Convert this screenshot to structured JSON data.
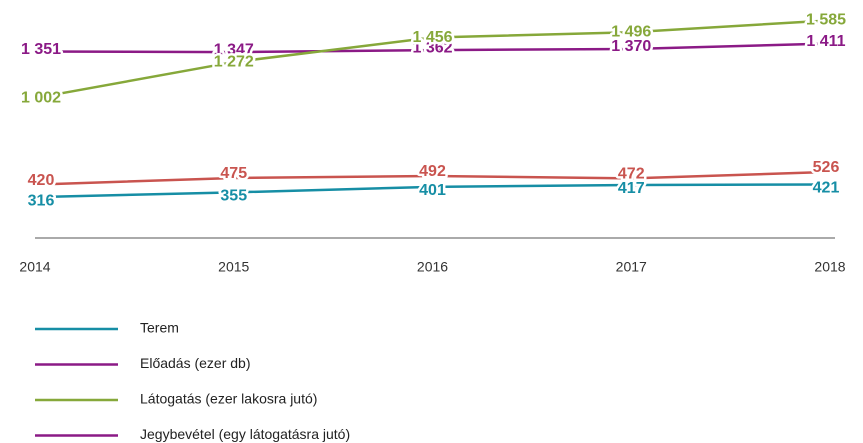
{
  "chart_data": {
    "type": "line",
    "categories": [
      "2014",
      "2015",
      "2016",
      "2017",
      "2018"
    ],
    "ylim": [
      800,
      1700
    ],
    "y2lim": [
      200,
      600
    ],
    "series": [
      {
        "name": "Terem",
        "color": "#168ea5",
        "legend_color": "#168ea5",
        "axis": "y2",
        "values": [
          316,
          355,
          401,
          417,
          421
        ]
      },
      {
        "name": "Előadás (ezer db)",
        "color": "#8b1a86",
        "legend_color": "#8b1a86",
        "values": [
          1351,
          1347,
          1362,
          1370,
          1411
        ],
        "value_labels": [
          "1 351",
          "1 347",
          "1 362",
          "1 370",
          "1 411"
        ]
      },
      {
        "name": "Látogatás (ezer lakosra jutó)",
        "color": "#86a83a",
        "legend_color": "#86a83a",
        "values": [
          1002,
          1272,
          1456,
          1496,
          1585
        ],
        "value_labels": [
          "1 002",
          "1 272",
          "1 456",
          "1 496",
          "1 585"
        ]
      },
      {
        "name": "Jegybevétel (egy látogatásra jutó)",
        "color": "#c9544f",
        "legend_color": "#8b1a86",
        "axis": "y2",
        "values": [
          420,
          475,
          492,
          472,
          526
        ]
      }
    ]
  }
}
